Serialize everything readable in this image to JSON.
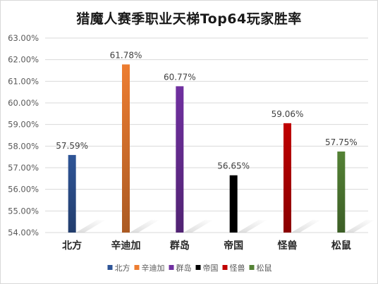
{
  "chart_data": {
    "type": "bar",
    "title": "猎魔人赛季职业天梯Top64玩家胜率",
    "categories": [
      "北方",
      "辛迪加",
      "群岛",
      "帝国",
      "怪兽",
      "松鼠"
    ],
    "values": [
      57.59,
      61.78,
      60.77,
      56.65,
      59.06,
      57.75
    ],
    "data_labels": [
      "57.59%",
      "61.78%",
      "60.77%",
      "56.65%",
      "59.06%",
      "57.75%"
    ],
    "colors": [
      "#2f5597",
      "#ed7d31",
      "#7030a0",
      "#000000",
      "#c00000",
      "#548235"
    ],
    "ylim": [
      54,
      63
    ],
    "yticks": [
      "54.00%",
      "55.00%",
      "56.00%",
      "57.00%",
      "58.00%",
      "59.00%",
      "60.00%",
      "61.00%",
      "62.00%",
      "63.00%"
    ],
    "xlabel": "",
    "ylabel": "",
    "grid": true,
    "legend": "bottom"
  }
}
